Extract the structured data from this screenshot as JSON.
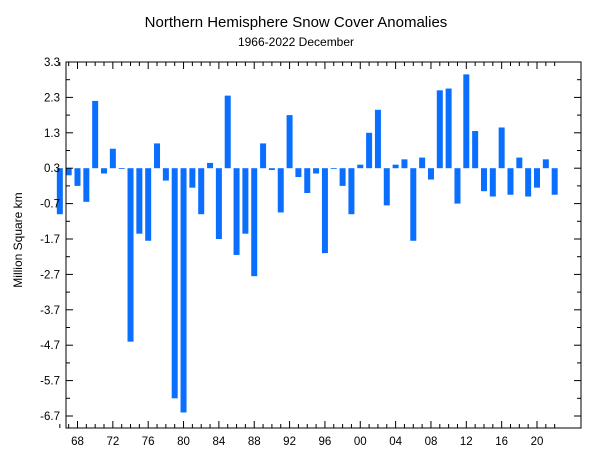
{
  "chart_data": {
    "type": "bar",
    "title": "Northern Hemisphere Snow Cover Anomalies",
    "subtitle": "1966-2022 December",
    "xlabel": "",
    "ylabel": "Million Square km",
    "ylim": [
      -7.2,
      3.3
    ],
    "y_ticks": [
      "3.3",
      "2.3",
      "1.3",
      "0.3",
      "-0.7",
      "-1.7",
      "-2.7",
      "-3.7",
      "-4.7",
      "-5.7",
      "-6.7"
    ],
    "x_ticks": [
      "68",
      "72",
      "76",
      "80",
      "84",
      "88",
      "92",
      "96",
      "00",
      "04",
      "08",
      "12",
      "16",
      "20"
    ],
    "bar_color": "#0A6EFF",
    "grid": false,
    "years": [
      1966,
      1967,
      1968,
      1969,
      1970,
      1971,
      1972,
      1973,
      1974,
      1975,
      1976,
      1977,
      1978,
      1979,
      1980,
      1981,
      1982,
      1983,
      1984,
      1985,
      1986,
      1987,
      1988,
      1989,
      1990,
      1991,
      1992,
      1993,
      1994,
      1995,
      1996,
      1997,
      1998,
      1999,
      2000,
      2001,
      2002,
      2003,
      2004,
      2005,
      2006,
      2007,
      2008,
      2009,
      2010,
      2011,
      2012,
      2013,
      2014,
      2015,
      2016,
      2017,
      2018,
      2019,
      2020,
      2021,
      2022
    ],
    "values": [
      -1.0,
      0.1,
      -0.2,
      -0.65,
      2.2,
      0.15,
      0.85,
      0.3,
      -4.6,
      -1.55,
      -1.75,
      1.0,
      -0.05,
      -6.2,
      -6.6,
      -0.25,
      -1.0,
      0.45,
      -1.7,
      2.35,
      -2.15,
      -1.55,
      -2.75,
      1.0,
      0.25,
      -0.95,
      1.8,
      0.05,
      -0.4,
      0.15,
      -2.1,
      0.3,
      -0.2,
      -1.0,
      0.4,
      1.3,
      1.95,
      -0.75,
      0.4,
      0.55,
      -1.75,
      0.6,
      -0.02,
      2.5,
      2.55,
      -0.7,
      2.95,
      1.35,
      -0.35,
      -0.5,
      1.45,
      -0.45,
      0.6,
      -0.5,
      -0.25,
      0.55,
      -0.45
    ]
  }
}
